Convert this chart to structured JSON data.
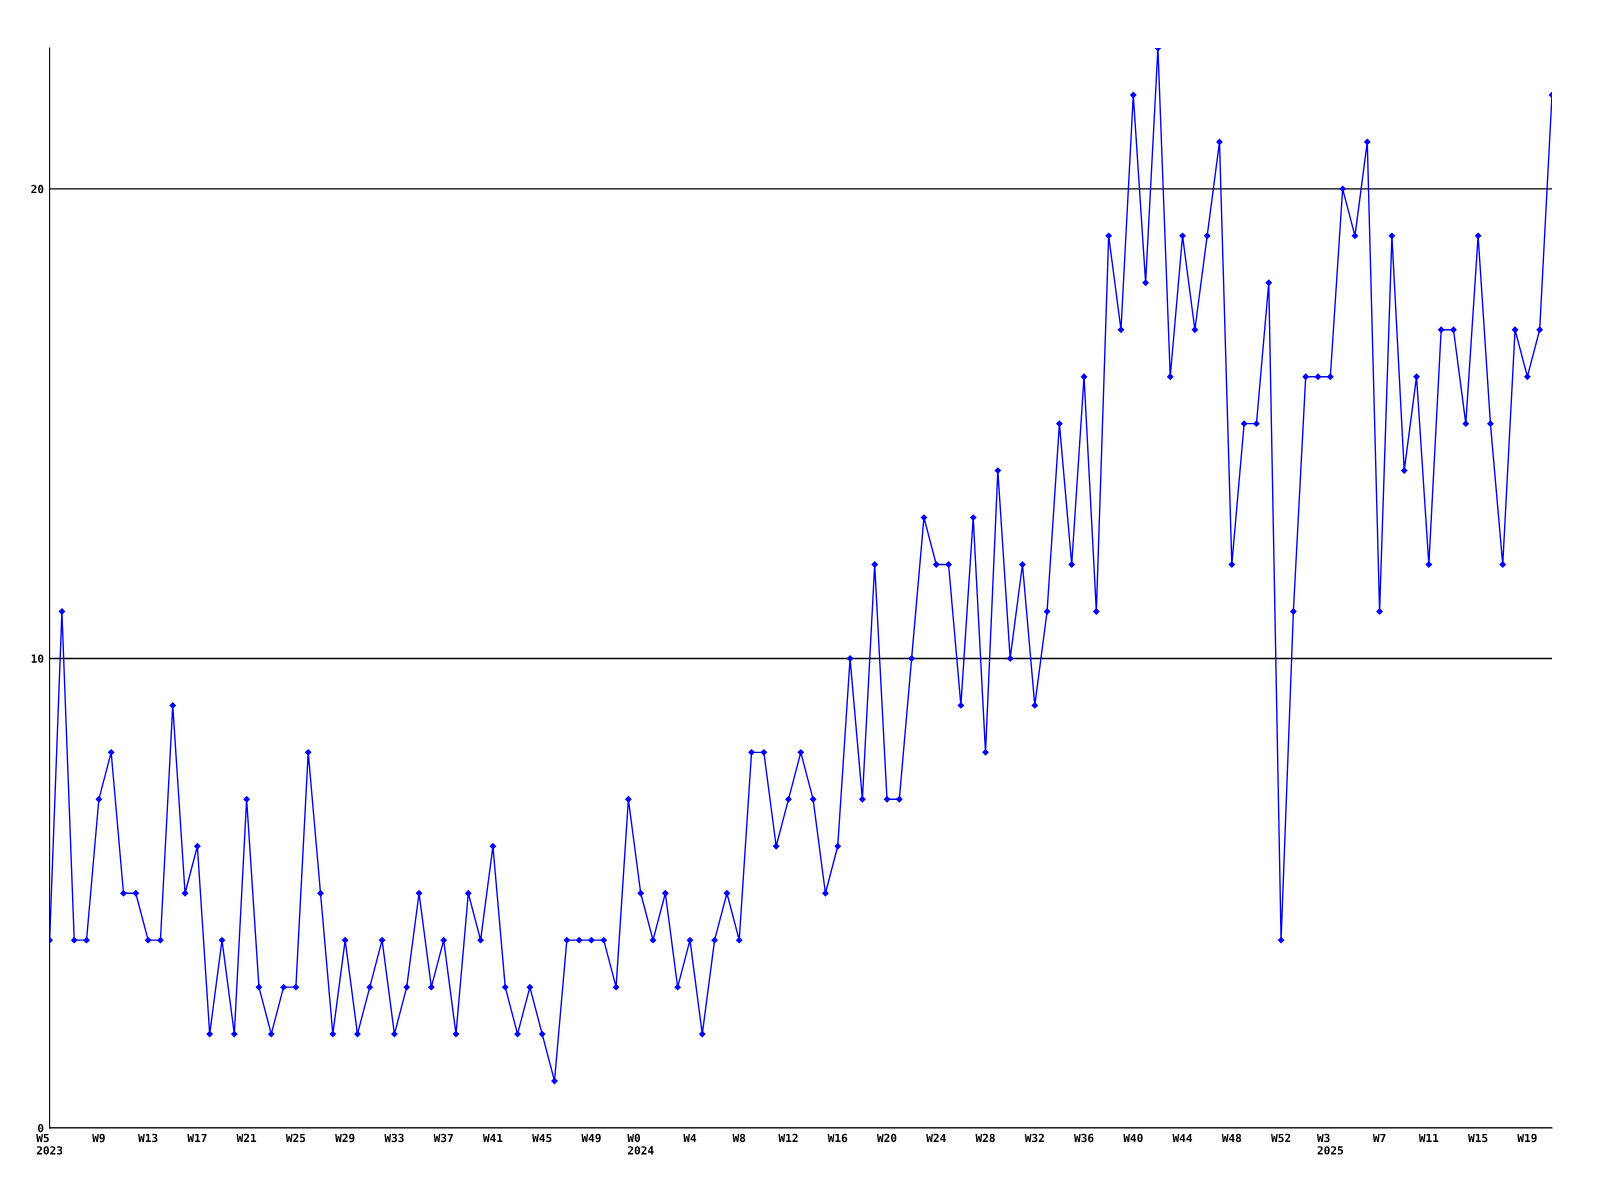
{
  "chart_data": {
    "type": "line",
    "categories": [
      "W5\n2023",
      null,
      null,
      null,
      "W9",
      null,
      null,
      null,
      "W13",
      null,
      null,
      null,
      "W17",
      null,
      null,
      null,
      "W21",
      null,
      null,
      null,
      "W25",
      null,
      null,
      null,
      "W29",
      null,
      null,
      null,
      "W33",
      null,
      null,
      null,
      "W37",
      null,
      null,
      null,
      "W41",
      null,
      null,
      null,
      "W45",
      null,
      null,
      null,
      "W49",
      null,
      null,
      null,
      "W0\n2024",
      null,
      null,
      null,
      "W4",
      null,
      null,
      null,
      "W8",
      null,
      null,
      null,
      "W12",
      null,
      null,
      null,
      "W16",
      null,
      null,
      null,
      "W20",
      null,
      null,
      null,
      "W24",
      null,
      null,
      null,
      "W28",
      null,
      null,
      null,
      "W32",
      null,
      null,
      null,
      "W36",
      null,
      null,
      null,
      "W40",
      null,
      null,
      null,
      "W44",
      null,
      null,
      null,
      "W48",
      null,
      null,
      null,
      "W52",
      null,
      null,
      null,
      "W3\n2025",
      null,
      null,
      null,
      "W7",
      null,
      null,
      null,
      "W11",
      null,
      null,
      null,
      "W15",
      null,
      null,
      null,
      "W19",
      null,
      null
    ],
    "series": [
      {
        "color": "#0000ff",
        "values": [
          4,
          11,
          4,
          4,
          7,
          8,
          5,
          5,
          4,
          4,
          9,
          5,
          6,
          2,
          4,
          2,
          7,
          3,
          2,
          3,
          3,
          8,
          5,
          2,
          4,
          2,
          3,
          4,
          2,
          3,
          5,
          3,
          4,
          2,
          5,
          4,
          6,
          3,
          2,
          3,
          2,
          1,
          4,
          4,
          4,
          4,
          3,
          7,
          5,
          4,
          5,
          3,
          4,
          2,
          4,
          5,
          4,
          8,
          8,
          6,
          7,
          8,
          7,
          5,
          6,
          10,
          7,
          12,
          7,
          7,
          10,
          13,
          12,
          12,
          9,
          13,
          8,
          14,
          10,
          12,
          9,
          11,
          15,
          12,
          16,
          11,
          19,
          17,
          22,
          18,
          23,
          16,
          19,
          17,
          19,
          21,
          12,
          15,
          15,
          18,
          4,
          11,
          16,
          16,
          16,
          20,
          19,
          21,
          11,
          19,
          14,
          16,
          12,
          17,
          17,
          15,
          19,
          15,
          12,
          17,
          16,
          17,
          22
        ]
      }
    ],
    "ylim": [
      0,
      23
    ],
    "yticks": [
      0,
      10,
      20
    ],
    "grid": "y",
    "marker": "diamond",
    "line_style": "solid"
  }
}
